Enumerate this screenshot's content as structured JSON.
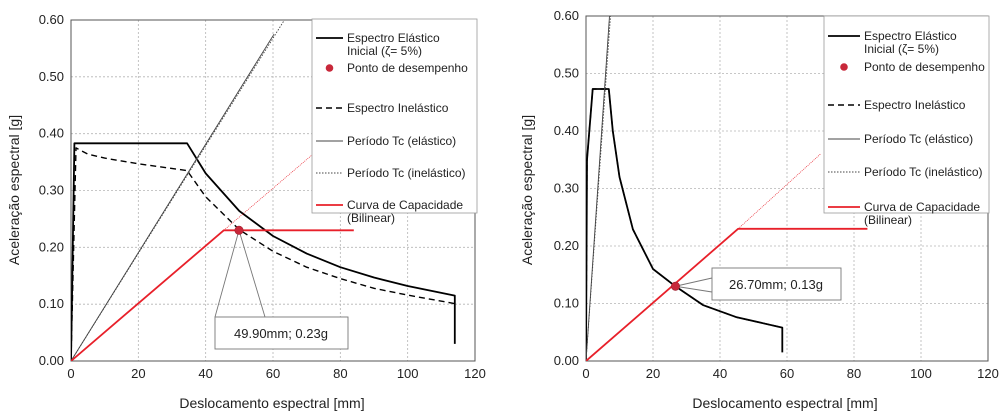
{
  "colors": {
    "elastic": "#000000",
    "inelastic": "#000000",
    "capacity": "#e8202a",
    "point": "#c8283a",
    "grid": "#b5b5b5"
  },
  "chart_data": [
    {
      "type": "line",
      "xlabel": "Deslocamento espectral [mm]",
      "ylabel": "Aceleração espectral [g]",
      "xlim": [
        0,
        120
      ],
      "ylim": [
        0,
        0.6
      ],
      "x_ticks": [
        "0",
        "20",
        "40",
        "60",
        "80",
        "100",
        "120"
      ],
      "y_ticks": [
        "0.00",
        "0.10",
        "0.20",
        "0.30",
        "0.40",
        "0.50",
        "0.60"
      ],
      "grid": true,
      "legend_position": "top-right",
      "legend": [
        {
          "label": "Espectro Elástico Inicial (ζ= 5%)",
          "style": "solid-thick"
        },
        {
          "label": "Ponto de desempenho",
          "style": "marker"
        },
        {
          "label": "Espectro Inelástico",
          "style": "dashed"
        },
        {
          "label": "Período Tc (elástico)",
          "style": "solid-thin"
        },
        {
          "label": "Período Tc (inelástico)",
          "style": "dotted"
        },
        {
          "label": "Curva de Capacidade (Bilinear)",
          "style": "red"
        }
      ],
      "series": [
        {
          "name": "Espectro Elástico Inicial (ζ= 5%)",
          "style": "solid-thick",
          "x": [
            0,
            1.0,
            34.5,
            40,
            50,
            60,
            70,
            80,
            90,
            100,
            114,
            114
          ],
          "y": [
            0,
            0.383,
            0.383,
            0.33,
            0.264,
            0.22,
            0.189,
            0.165,
            0.147,
            0.132,
            0.115,
            0.03
          ]
        },
        {
          "name": "Espectro Inelástico",
          "style": "dashed",
          "x": [
            0,
            1.5,
            5,
            10,
            20,
            34.5,
            40,
            50,
            60,
            70,
            80,
            90,
            100,
            114
          ],
          "y": [
            0,
            0.375,
            0.364,
            0.357,
            0.347,
            0.335,
            0.289,
            0.231,
            0.193,
            0.165,
            0.145,
            0.128,
            0.116,
            0.101
          ]
        },
        {
          "name": "Período Tc (elástico)",
          "style": "solid-thin",
          "x": [
            0,
            60.3
          ],
          "y": [
            0,
            0.575
          ]
        },
        {
          "name": "Período Tc (inelástico)",
          "style": "dotted",
          "x": [
            0,
            63.4
          ],
          "y": [
            0,
            0.6
          ]
        },
        {
          "name": "Curva de Capacidade (Bilinear)",
          "style": "red",
          "x": [
            0,
            45.4,
            50,
            84
          ],
          "y": [
            0,
            0.23,
            0.23,
            0.23
          ]
        },
        {
          "name": "Curva de Capacidade extension",
          "style": "red-thin",
          "x": [
            45.4,
            80
          ],
          "y": [
            0.23,
            0.405
          ]
        }
      ],
      "point": {
        "x": 49.9,
        "y": 0.23
      },
      "annotation": {
        "text": "49.90mm; 0.23g",
        "x": 49.9,
        "y": 0.23
      }
    },
    {
      "type": "line",
      "xlabel": "Deslocamento espectral [mm]",
      "ylabel": "Aceleração espectral [g]",
      "xlim": [
        0,
        120
      ],
      "ylim": [
        0,
        0.6
      ],
      "x_ticks": [
        "0",
        "20",
        "40",
        "60",
        "80",
        "100",
        "120"
      ],
      "y_ticks": [
        "0.00",
        "0.10",
        "0.20",
        "0.30",
        "0.40",
        "0.50",
        "0.60"
      ],
      "grid": true,
      "legend_position": "top-right",
      "legend": [
        {
          "label": "Espectro Elástico Inicial (ζ= 5%)",
          "style": "solid-thick"
        },
        {
          "label": "Ponto de desempenho",
          "style": "marker"
        },
        {
          "label": "Espectro Inelástico",
          "style": "dashed"
        },
        {
          "label": "Período Tc (elástico)",
          "style": "solid-thin"
        },
        {
          "label": "Período Tc (inelástico)",
          "style": "dotted"
        },
        {
          "label": "Curva de Capacidade (Bilinear)",
          "style": "red"
        }
      ],
      "series": [
        {
          "name": "Espectro Elástico Inicial (ζ= 5%)",
          "style": "solid-thick",
          "x": [
            0,
            0.3,
            2,
            6.8,
            8,
            10,
            14,
            20,
            26.7,
            35,
            45,
            58.6,
            58.6
          ],
          "y": [
            0,
            0.35,
            0.473,
            0.473,
            0.4,
            0.32,
            0.229,
            0.16,
            0.13,
            0.097,
            0.076,
            0.058,
            0.015
          ]
        },
        {
          "name": "Espectro Inelástico",
          "style": "dashed",
          "x": [
            0,
            0.3,
            2,
            6.8,
            8,
            10,
            14,
            20,
            26.7,
            35,
            45,
            58.6
          ],
          "y": [
            0,
            0.35,
            0.473,
            0.473,
            0.4,
            0.32,
            0.229,
            0.16,
            0.13,
            0.097,
            0.076,
            0.058
          ]
        },
        {
          "name": "Período Tc (elástico)",
          "style": "solid-thin",
          "x": [
            0,
            7.0
          ],
          "y": [
            0,
            0.6
          ]
        },
        {
          "name": "Período Tc (inelástico)",
          "style": "dotted",
          "x": [
            0,
            7.3
          ],
          "y": [
            0,
            0.6
          ]
        },
        {
          "name": "Curva de Capacidade (Bilinear)",
          "style": "red",
          "x": [
            0,
            45.4,
            84
          ],
          "y": [
            0,
            0.23,
            0.23
          ]
        },
        {
          "name": "Curva de Capacidade extension",
          "style": "red-thin",
          "x": [
            45.4,
            70
          ],
          "y": [
            0.23,
            0.36
          ]
        }
      ],
      "point": {
        "x": 26.7,
        "y": 0.13
      },
      "annotation": {
        "text": "26.70mm; 0.13g",
        "x": 26.7,
        "y": 0.13
      }
    }
  ]
}
